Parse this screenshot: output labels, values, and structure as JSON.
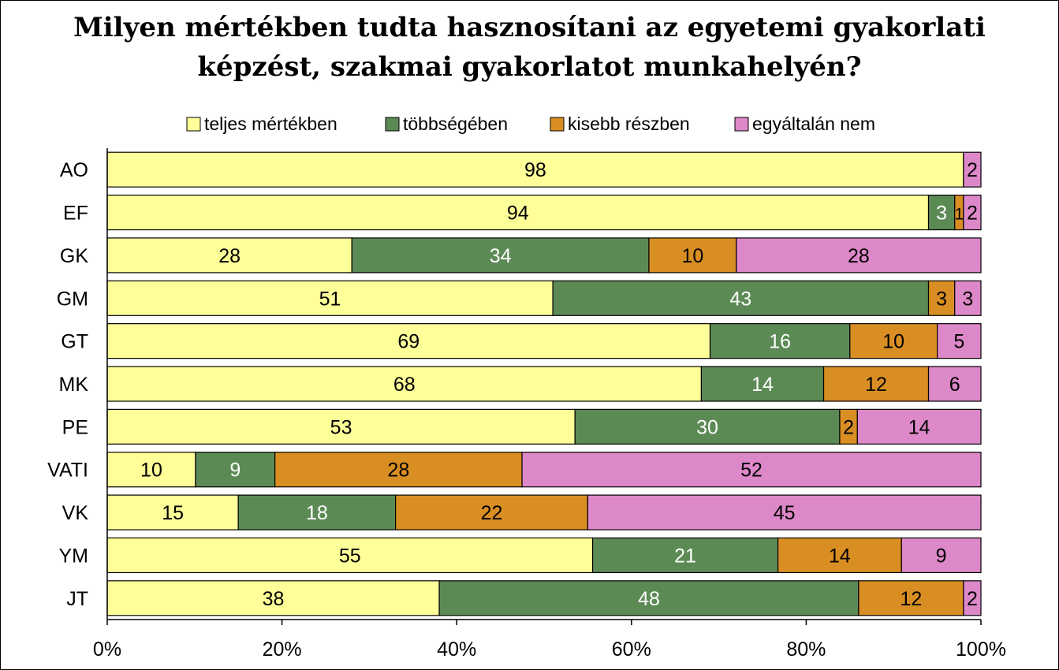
{
  "chart_data": {
    "type": "bar",
    "orientation": "horizontal",
    "stacked": "percent",
    "title_lines": [
      "Milyen mértékben tudta hasznosítani az egyetemi gyakorlati",
      "képzést, szakmai gyakorlatot munkahelyén?"
    ],
    "categories": [
      "AO",
      "EF",
      "GK",
      "GM",
      "GT",
      "MK",
      "PE",
      "VATI",
      "VK",
      "YM",
      "JT"
    ],
    "series": [
      {
        "name": "teljes mértékben",
        "color": "#FFFF99",
        "label_color": "#000000",
        "values": [
          98,
          94,
          28,
          51,
          69,
          68,
          53,
          10,
          15,
          55,
          38
        ]
      },
      {
        "name": "többségében",
        "color": "#5C8A55",
        "label_color": "#FFFFFF",
        "values": [
          0,
          3,
          34,
          43,
          16,
          14,
          30,
          9,
          18,
          21,
          48
        ]
      },
      {
        "name": "kisebb részben",
        "color": "#D98E23",
        "label_color": "#000000",
        "values": [
          0,
          1,
          10,
          3,
          10,
          12,
          2,
          28,
          22,
          14,
          12
        ]
      },
      {
        "name": "egyáltalán nem",
        "color": "#DD88C8",
        "label_color": "#000000",
        "values": [
          2,
          2,
          28,
          3,
          5,
          6,
          14,
          52,
          45,
          9,
          2
        ]
      }
    ],
    "x_ticks": [
      "0%",
      "20%",
      "40%",
      "60%",
      "80%",
      "100%"
    ],
    "xlim": [
      0,
      100
    ],
    "legend_position": "top",
    "grid": false
  }
}
